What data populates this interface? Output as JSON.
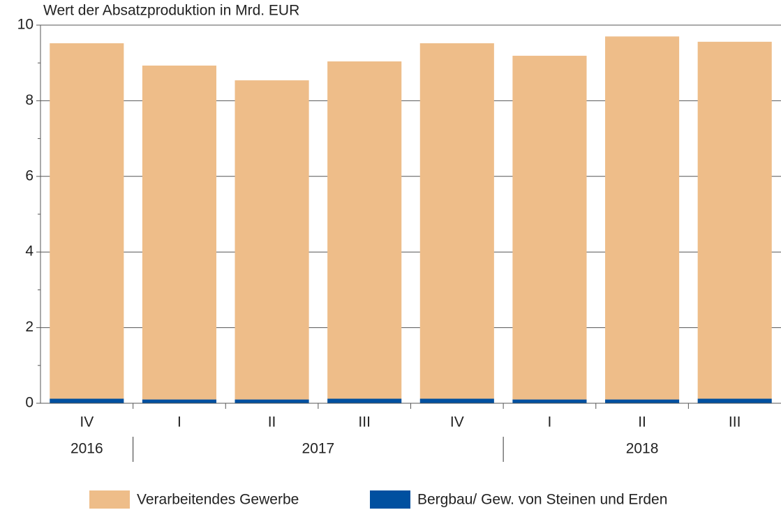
{
  "chart_data": {
    "type": "stacked_bar",
    "title": "Wert der Absatzproduktion in Mrd. EUR",
    "categories": [
      "IV",
      "I",
      "II",
      "III",
      "IV",
      "I",
      "II",
      "III"
    ],
    "x_groups": [
      {
        "label": "2016",
        "count": 1
      },
      {
        "label": "2017",
        "count": 4
      },
      {
        "label": "2018",
        "count": 3
      }
    ],
    "series": [
      {
        "name": "Verarbeitendes Gewerbe",
        "color": "#eebd89",
        "values": [
          9.4,
          8.83,
          8.44,
          8.92,
          9.4,
          9.09,
          9.6,
          9.44
        ]
      },
      {
        "name": "Bergbau/ Gew. von Steinen und Erden",
        "color": "#0050a0",
        "values": [
          0.12,
          0.1,
          0.1,
          0.12,
          0.12,
          0.1,
          0.1,
          0.12
        ]
      }
    ],
    "ylim": [
      0,
      10
    ],
    "yticks": [
      0,
      2,
      4,
      6,
      8,
      10
    ],
    "minor_yticks": [
      1,
      3,
      5,
      7,
      9
    ],
    "grid": true
  }
}
